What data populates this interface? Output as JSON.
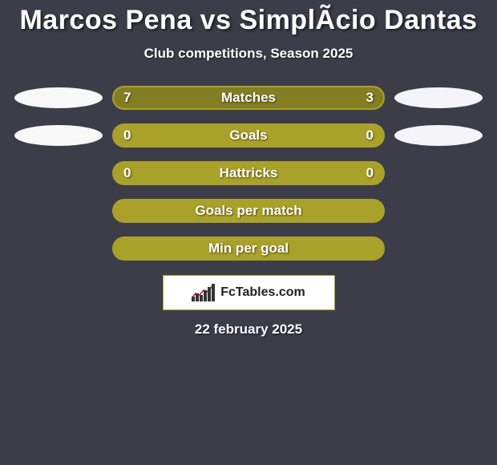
{
  "colors": {
    "page_bg": "#3d3d4a",
    "text": "#ffffff",
    "accent": "#a9a12a",
    "bar_border": "#a9a12a",
    "bar_darkfill": "#837d24",
    "marker_left": "#f8f8f8",
    "marker_right": "#f5f5f9",
    "logo_bg": "#ffffff",
    "logo_border": "#a9a12a",
    "logo_text": "#222222",
    "logo_bars": "#333333",
    "logo_line": "#c02030"
  },
  "title": "Marcos Pena vs SimplÃ­cio Dantas",
  "subtitle": "Club competitions, Season 2025",
  "logo_text": "FcTables.com",
  "date_footer": "22 february 2025",
  "stats": [
    {
      "label": "Matches",
      "left_value": "7",
      "right_value": "3",
      "left_pct": 70,
      "right_pct": 30,
      "show_left_marker": true,
      "show_right_marker": true
    },
    {
      "label": "Goals",
      "left_value": "0",
      "right_value": "0",
      "left_pct": 0,
      "right_pct": 0,
      "show_left_marker": true,
      "show_right_marker": true
    },
    {
      "label": "Hattricks",
      "left_value": "0",
      "right_value": "0",
      "left_pct": 0,
      "right_pct": 0,
      "show_left_marker": false,
      "show_right_marker": false
    },
    {
      "label": "Goals per match",
      "left_value": "",
      "right_value": "",
      "left_pct": 0,
      "right_pct": 0,
      "show_left_marker": false,
      "show_right_marker": false
    },
    {
      "label": "Min per goal",
      "left_value": "",
      "right_value": "",
      "left_pct": 0,
      "right_pct": 0,
      "show_left_marker": false,
      "show_right_marker": false
    }
  ],
  "logo_bars_heights": [
    6,
    10,
    8,
    14,
    18,
    22
  ],
  "logo_line_points": "0,18 5,12 10,14 15,8 20,10 25,4 28,2",
  "typography": {
    "title_fontsize": 34,
    "subtitle_fontsize": 17,
    "bar_label_fontsize": 17,
    "footer_fontsize": 17
  }
}
